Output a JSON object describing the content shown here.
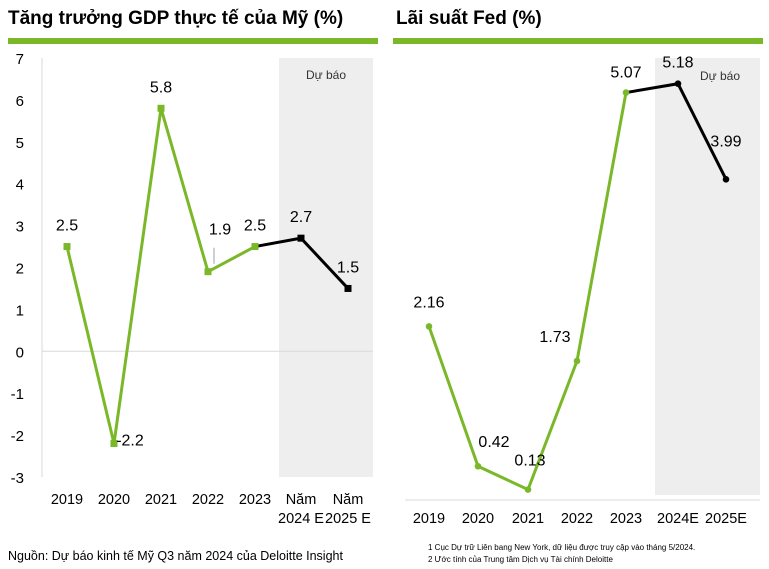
{
  "colors": {
    "actual": "#7ab829",
    "forecast": "#000000",
    "forecast_band": "#eeeeee",
    "rule": "#7ab829",
    "axis": "#d9d9d9"
  },
  "chart_data": [
    {
      "type": "line",
      "title": "Tăng trưởng GDP thực tế của Mỹ (%)",
      "forecast_label": "Dự báo",
      "categories": [
        "2019",
        "2020",
        "2021",
        "2022",
        "2023",
        "Năm 2024 E",
        "Năm 2025 E"
      ],
      "category_lines": [
        [
          "2019"
        ],
        [
          "2020"
        ],
        [
          "2021"
        ],
        [
          "2022"
        ],
        [
          "2023"
        ],
        [
          "Năm",
          "2024 E"
        ],
        [
          "Năm",
          "2025 E"
        ]
      ],
      "values": [
        2.5,
        -2.2,
        5.8,
        1.9,
        2.5,
        2.7,
        1.5
      ],
      "value_labels": [
        "2.5",
        "-2.2",
        "5.8",
        "1.9",
        "2.5",
        "2.7",
        "1.5"
      ],
      "forecast_start_index": 4,
      "forecast_band_from_index": 5,
      "yticks": [
        "7",
        "6",
        "5",
        "4",
        "3",
        "2",
        "1",
        "0",
        "-1",
        "-2",
        "-3"
      ],
      "ylim": [
        -3,
        7
      ],
      "marker": "square",
      "grid": false,
      "xlabel": "",
      "ylabel": ""
    },
    {
      "type": "line",
      "title": "Lãi suất Fed (%)",
      "forecast_label": "Dự báo",
      "categories": [
        "2019",
        "2020",
        "2021",
        "2022",
        "2023",
        "2024E",
        "2025E"
      ],
      "category_lines": [
        [
          "2019"
        ],
        [
          "2020"
        ],
        [
          "2021"
        ],
        [
          "2022"
        ],
        [
          "2023"
        ],
        [
          "2024E"
        ],
        [
          "2025E"
        ]
      ],
      "values": [
        2.16,
        0.42,
        0.13,
        1.73,
        5.07,
        5.18,
        3.99
      ],
      "value_labels": [
        "2.16",
        "0.42",
        "0.13",
        "1.73",
        "5.07",
        "5.18",
        "3.99"
      ],
      "forecast_start_index": 4,
      "forecast_band_from_index": 5,
      "ylim": [
        0,
        5.5
      ],
      "marker": "circle",
      "grid": false,
      "xlabel": "",
      "ylabel": ""
    }
  ],
  "footnotes": {
    "source": "Nguồn: Dự báo kinh tế Mỹ Q3 năm 2024 của Deloitte Insight",
    "note1": "1 Cục Dự trữ Liên bang New York, dữ liệu được truy cập vào tháng 5/2024.",
    "note2": "2 Ước tính của Trung tâm Dịch vụ Tài chính Deloitte"
  }
}
